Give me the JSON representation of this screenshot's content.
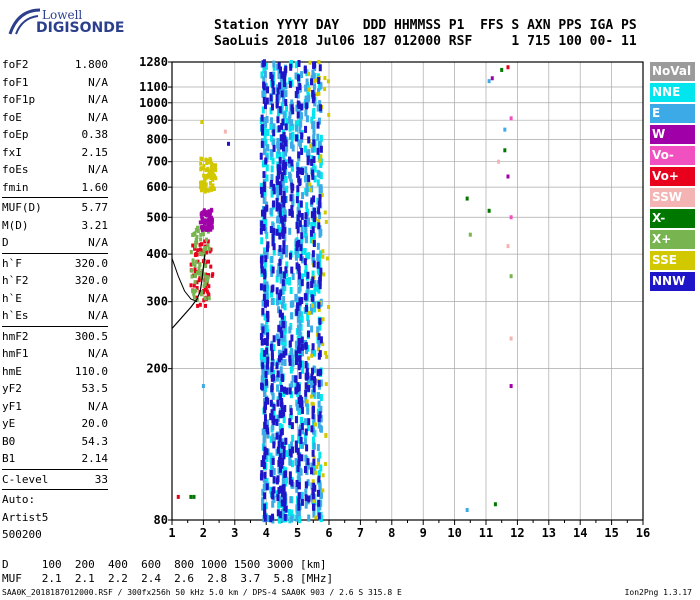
{
  "logo": {
    "line1": "Lowell",
    "line2": "DIGISONDE"
  },
  "header": {
    "row1": "Station YYYY DAY   DDD HHMMSS P1  FFS S AXN PPS IGA PS",
    "row2": "SaoLuis 2018 Jul06 187 012000 RSF     1 715 100 00- 11"
  },
  "params": {
    "group1": [
      {
        "name": "foF2",
        "value": "1.800"
      },
      {
        "name": "foF1",
        "value": "N/A"
      },
      {
        "name": "foF1p",
        "value": "N/A"
      },
      {
        "name": "foE",
        "value": "N/A"
      },
      {
        "name": "foEp",
        "value": "0.38"
      },
      {
        "name": "fxI",
        "value": "2.15"
      },
      {
        "name": "foEs",
        "value": "N/A"
      },
      {
        "name": "fmin",
        "value": "1.60"
      }
    ],
    "group2": [
      {
        "name": "MUF(D)",
        "value": "5.77"
      },
      {
        "name": "M(D)",
        "value": "3.21"
      },
      {
        "name": "D",
        "value": "N/A"
      }
    ],
    "group3": [
      {
        "name": "h`F",
        "value": "320.0"
      },
      {
        "name": "h`F2",
        "value": "320.0"
      },
      {
        "name": "h`E",
        "value": "N/A"
      },
      {
        "name": "h`Es",
        "value": "N/A"
      }
    ],
    "group4": [
      {
        "name": "hmF2",
        "value": "300.5"
      },
      {
        "name": "hmF1",
        "value": "N/A"
      },
      {
        "name": "hmE",
        "value": "110.0"
      },
      {
        "name": "yF2",
        "value": "53.5"
      },
      {
        "name": "yF1",
        "value": "N/A"
      },
      {
        "name": "yE",
        "value": "20.0"
      },
      {
        "name": "B0",
        "value": "54.3"
      },
      {
        "name": "B1",
        "value": "2.14"
      }
    ],
    "group5": [
      {
        "name": "C-level",
        "value": "33"
      }
    ]
  },
  "auto": {
    "line1": "Auto:",
    "line2": "Artist5",
    "line3": "500200"
  },
  "legend": [
    {
      "label": "NoVal",
      "color": "#9b9b9b"
    },
    {
      "label": "NNE",
      "color": "#00e5ee"
    },
    {
      "label": "E",
      "color": "#3caae6"
    },
    {
      "label": "W",
      "color": "#a000a8"
    },
    {
      "label": "Vo-",
      "color": "#f050c0"
    },
    {
      "label": "Vo+",
      "color": "#e8001c"
    },
    {
      "label": "SSW",
      "color": "#f5b4b4"
    },
    {
      "label": "X-",
      "color": "#007800"
    },
    {
      "label": "X+",
      "color": "#78b450"
    },
    {
      "label": "SSE",
      "color": "#d2c800"
    },
    {
      "label": "NNW",
      "color": "#1e14c8"
    }
  ],
  "muf_table": {
    "d_row": "D     100  200  400  600  800 1000 1500 3000 [km]",
    "muf_row": "MUF   2.1  2.1  2.2  2.4  2.6  2.8  3.7  5.8 [MHz]"
  },
  "footer": "SAA0K_2018187012000.RSF / 300fx256h 50 kHz 5.0 km / DPS-4 SAA0K 903 / 2.6 S 315.8 E",
  "version": "Ion2Png 1.3.17",
  "chart_data": {
    "type": "scatter",
    "title": "",
    "xlabel": "",
    "ylabel": "",
    "x_unit": "MHz",
    "y_unit": "km",
    "xlim": [
      1,
      16
    ],
    "ylim": [
      80,
      1280
    ],
    "x_ticks": [
      1,
      2,
      3,
      4,
      5,
      6,
      7,
      8,
      9,
      10,
      11,
      12,
      13,
      14,
      15,
      16
    ],
    "y_ticks": [
      80,
      200,
      300,
      400,
      500,
      600,
      700,
      800,
      900,
      1000,
      1100,
      1280
    ],
    "y_scale": "log",
    "grid": true,
    "legend_position": "right",
    "trace": {
      "description": "virtual height trace",
      "points": [
        [
          1.0,
          255
        ],
        [
          1.3,
          272
        ],
        [
          1.6,
          290
        ],
        [
          1.8,
          305
        ],
        [
          1.9,
          320
        ],
        [
          1.95,
          340
        ],
        [
          2.0,
          370
        ],
        [
          2.05,
          400
        ]
      ]
    },
    "trace2": {
      "points": [
        [
          1.0,
          390
        ],
        [
          1.2,
          350
        ],
        [
          1.4,
          320
        ],
        [
          1.6,
          305
        ],
        [
          1.8,
          300
        ]
      ]
    },
    "echo_clusters": [
      {
        "direction": "Vo+",
        "x_range": [
          1.6,
          2.3
        ],
        "y_range": [
          290,
          430
        ]
      },
      {
        "direction": "X+",
        "x_range": [
          1.6,
          2.2
        ],
        "y_range": [
          300,
          470
        ]
      },
      {
        "direction": "SSE",
        "x_range": [
          1.9,
          2.4
        ],
        "y_range": [
          580,
          710
        ]
      },
      {
        "direction": "W",
        "x_range": [
          1.9,
          2.3
        ],
        "y_range": [
          460,
          520
        ]
      },
      {
        "direction": "NNE",
        "x_range": [
          3.8,
          5.8
        ],
        "y_range": [
          80,
          1280
        ]
      },
      {
        "direction": "E",
        "x_range": [
          3.8,
          5.8
        ],
        "y_range": [
          80,
          1280
        ]
      },
      {
        "direction": "SSE",
        "x_range": [
          5.3,
          6.0
        ],
        "y_range": [
          80,
          1280
        ]
      },
      {
        "direction": "NNW",
        "x_range": [
          3.8,
          5.8
        ],
        "y_range": [
          80,
          1280
        ]
      }
    ]
  }
}
